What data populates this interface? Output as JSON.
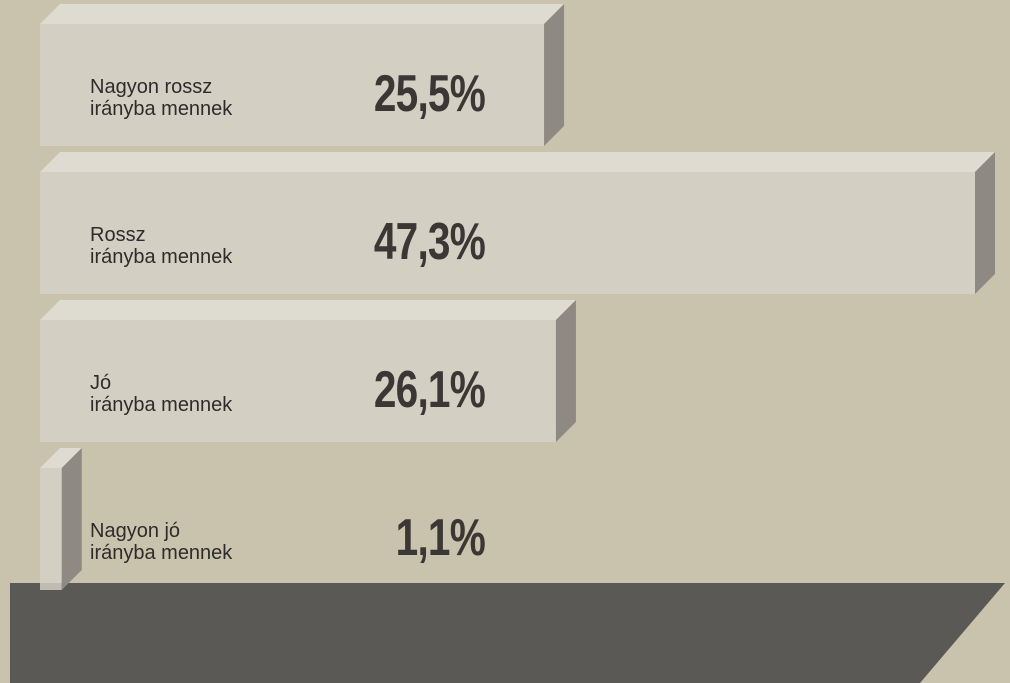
{
  "chart_data": {
    "type": "bar",
    "categories": [
      "Nagyon rossz\nirányba mennek",
      "Rossz\nirányba mennek",
      "Jó\nirányba mennek",
      "Nagyon jó\nirányba mennek"
    ],
    "values": [
      25.5,
      47.3,
      26.1,
      1.1
    ],
    "value_labels": [
      "25,5%",
      "47,3%",
      "26,1%",
      "1,1%"
    ],
    "color": "#d6d2c8"
  }
}
